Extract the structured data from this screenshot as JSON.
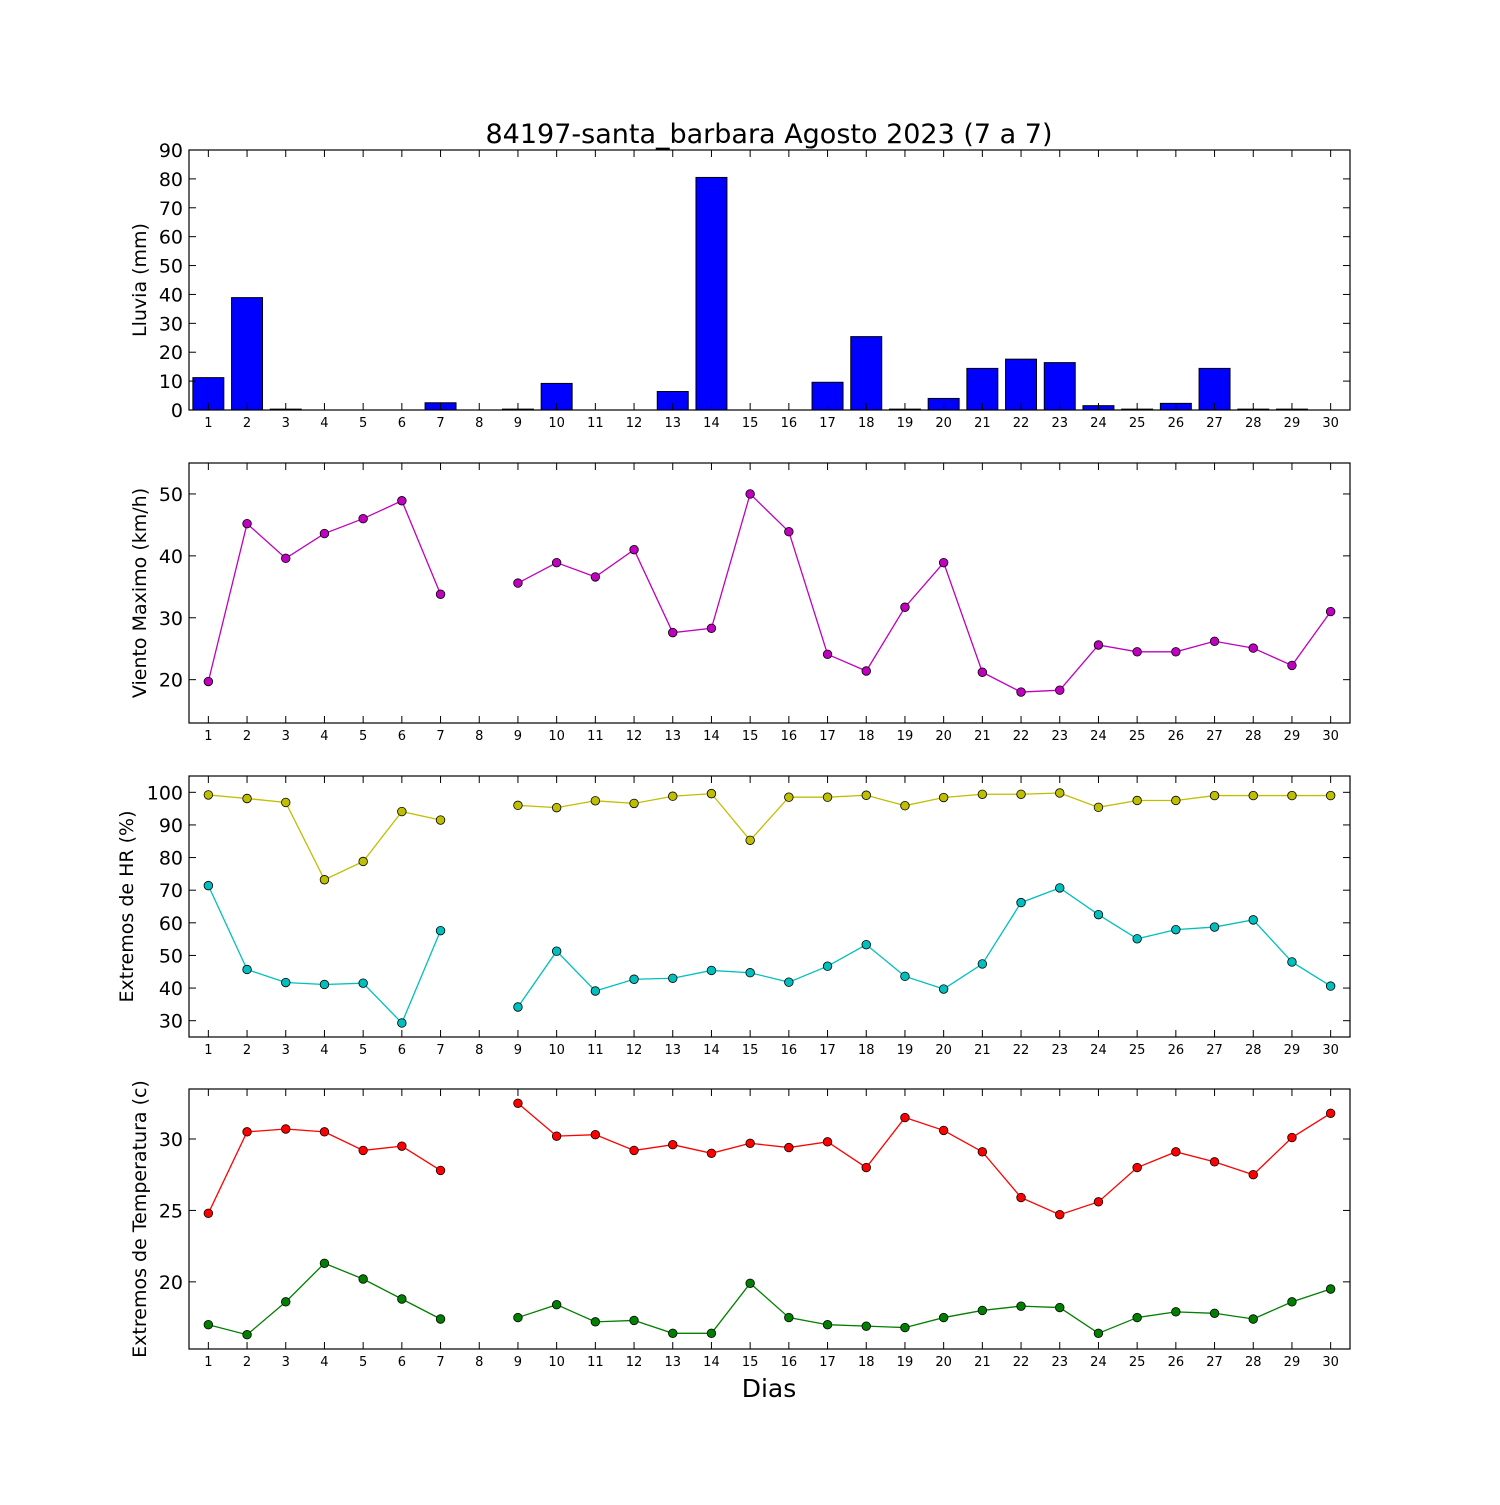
{
  "figure": {
    "title": "84197-santa_barbara Agosto 2023  (7 a 7)",
    "xlabel": "Dias"
  },
  "chart_data": [
    {
      "type": "bar",
      "ylabel": "Lluvia (mm)",
      "ylim": [
        0,
        90
      ],
      "yticks": [
        0,
        10,
        20,
        30,
        40,
        50,
        60,
        70,
        80,
        90
      ],
      "x": [
        1,
        2,
        3,
        4,
        5,
        6,
        7,
        8,
        9,
        10,
        11,
        12,
        13,
        14,
        15,
        16,
        17,
        18,
        19,
        20,
        21,
        22,
        23,
        24,
        25,
        26,
        27,
        28,
        29,
        30
      ],
      "series": [
        {
          "color": "#0000ff",
          "values": [
            11.2,
            38.9,
            0.3,
            0,
            0,
            0,
            2.5,
            0,
            0.3,
            9.2,
            0,
            0,
            6.4,
            80.5,
            0,
            0,
            9.6,
            25.4,
            0.3,
            4.0,
            14.4,
            17.6,
            16.4,
            1.5,
            0.3,
            2.3,
            14.4,
            0.3,
            0.3,
            0
          ]
        }
      ]
    },
    {
      "type": "line",
      "ylabel": "Viento Maximo (km/h)",
      "ylim": [
        13,
        55
      ],
      "yticks": [
        20,
        30,
        40,
        50
      ],
      "x": [
        1,
        2,
        3,
        4,
        5,
        6,
        7,
        8,
        9,
        10,
        11,
        12,
        13,
        14,
        15,
        16,
        17,
        18,
        19,
        20,
        21,
        22,
        23,
        24,
        25,
        26,
        27,
        28,
        29,
        30
      ],
      "series": [
        {
          "color": "#bf00bf",
          "values": [
            19.7,
            45.2,
            39.6,
            43.6,
            46.0,
            48.9,
            33.8,
            null,
            35.6,
            38.9,
            36.6,
            41.0,
            27.6,
            28.3,
            50.0,
            43.9,
            24.1,
            21.4,
            31.7,
            38.9,
            21.2,
            18.0,
            18.3,
            25.6,
            24.5,
            24.5,
            26.2,
            25.1,
            22.3,
            31.0
          ]
        }
      ]
    },
    {
      "type": "line",
      "ylabel": "Extremos de HR (%)",
      "ylim": [
        25,
        105
      ],
      "yticks": [
        30,
        40,
        50,
        60,
        70,
        80,
        90,
        100
      ],
      "x": [
        1,
        2,
        3,
        4,
        5,
        6,
        7,
        8,
        9,
        10,
        11,
        12,
        13,
        14,
        15,
        16,
        17,
        18,
        19,
        20,
        21,
        22,
        23,
        24,
        25,
        26,
        27,
        28,
        29,
        30
      ],
      "series": [
        {
          "color": "#bfbf00",
          "values": [
            99.2,
            98.1,
            96.9,
            73.2,
            78.8,
            94.1,
            91.5,
            null,
            96.0,
            95.3,
            97.4,
            96.6,
            98.8,
            99.6,
            85.3,
            98.5,
            98.5,
            99.1,
            95.9,
            98.4,
            99.4,
            99.4,
            99.8,
            95.4,
            97.5,
            97.5,
            99.0,
            99.0,
            99.0,
            99.0
          ]
        },
        {
          "color": "#00bfbf",
          "values": [
            71.4,
            45.7,
            41.7,
            41.1,
            41.5,
            29.3,
            57.6,
            null,
            34.2,
            51.3,
            39.1,
            42.7,
            43.0,
            45.4,
            44.7,
            41.8,
            46.7,
            53.3,
            43.6,
            39.7,
            47.4,
            66.2,
            70.7,
            62.5,
            55.1,
            57.9,
            58.7,
            60.9,
            48.0,
            40.6
          ]
        }
      ]
    },
    {
      "type": "line",
      "ylabel": "Extremos de Temperatura (c)",
      "ylim": [
        15.3,
        33.5
      ],
      "yticks": [
        20,
        25,
        30
      ],
      "x": [
        1,
        2,
        3,
        4,
        5,
        6,
        7,
        8,
        9,
        10,
        11,
        12,
        13,
        14,
        15,
        16,
        17,
        18,
        19,
        20,
        21,
        22,
        23,
        24,
        25,
        26,
        27,
        28,
        29,
        30
      ],
      "series": [
        {
          "color": "#ff0000",
          "values": [
            24.8,
            30.5,
            30.7,
            30.5,
            29.2,
            29.5,
            27.8,
            null,
            32.5,
            30.2,
            30.3,
            29.2,
            29.6,
            29.0,
            29.7,
            29.4,
            29.8,
            28.0,
            31.5,
            30.6,
            29.1,
            25.9,
            24.7,
            25.6,
            28.0,
            29.1,
            28.4,
            27.5,
            30.1,
            31.8
          ]
        },
        {
          "color": "#007f00",
          "values": [
            17.0,
            16.3,
            18.6,
            21.3,
            20.2,
            18.8,
            17.4,
            null,
            17.5,
            18.4,
            17.2,
            17.3,
            16.4,
            16.4,
            19.9,
            17.5,
            17.0,
            16.9,
            16.8,
            17.5,
            18.0,
            18.3,
            18.2,
            16.4,
            17.5,
            17.9,
            17.8,
            17.4,
            18.6,
            19.5
          ]
        }
      ]
    }
  ]
}
